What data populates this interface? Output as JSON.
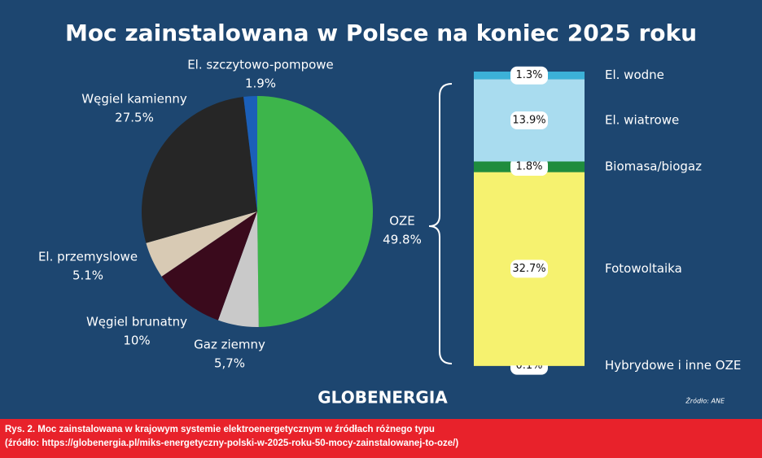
{
  "title": "Moc zainstalowana w Polsce na koniec 2025 roku",
  "logo": "GLOBENERGIA",
  "source": "Źródło: ANE",
  "caption": [
    "Rys. 2. Moc zainstalowana w krajowym systemie elektroenergetycznym w źródłach różnego typu",
    "(źródło: https://globenergia.pl/miks-energetyczny-polski-w-2025-roku-50-mocy-zainstalowanej-to-oze/)"
  ],
  "chart_data": [
    {
      "type": "pie",
      "categories": [
        "OZE",
        "Gaz ziemny",
        "Węgiel brunatny",
        "El. przemyslowe",
        "Węgiel kamienny",
        "El. szczytowo-pompowe"
      ],
      "values": [
        49.8,
        5.7,
        10,
        5.1,
        27.5,
        1.9
      ],
      "value_labels": [
        "49.8%",
        "5,7%",
        "10%",
        "5.1%",
        "27.5%",
        "1.9%"
      ],
      "colors": [
        "#3db54b",
        "#c9c9c9",
        "#3a0a1c",
        "#d8cab4",
        "#262626",
        "#1b5fb8"
      ]
    },
    {
      "type": "bar",
      "stacked": true,
      "series": [
        {
          "name": "Hybrydowe i inne OZE",
          "color": "#f3ee6a",
          "values": [
            0.1
          ],
          "value_labels": [
            "0.1%"
          ]
        },
        {
          "name": "Fotowoltaika",
          "color": "#f6f26f",
          "values": [
            32.7
          ],
          "value_labels": [
            "32.7%"
          ]
        },
        {
          "name": "Biomasa/biogaz",
          "color": "#1f8c3d",
          "values": [
            1.8
          ],
          "value_labels": [
            "1.8%"
          ]
        },
        {
          "name": "El. wiatrowe",
          "color": "#a9dcef",
          "values": [
            13.9
          ],
          "value_labels": [
            "13.9%"
          ]
        },
        {
          "name": "El. wodne",
          "color": "#3cb1d8",
          "values": [
            1.3
          ],
          "value_labels": [
            "1.3%"
          ]
        }
      ]
    }
  ]
}
